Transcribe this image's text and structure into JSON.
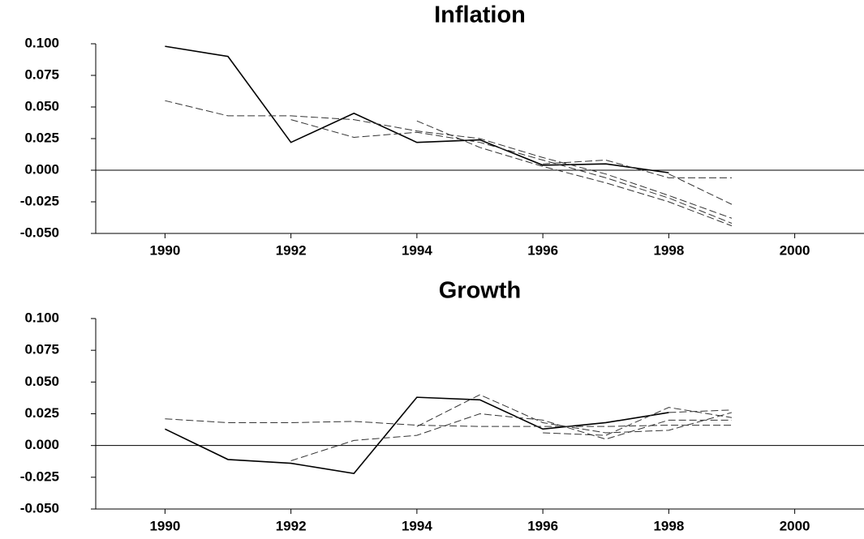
{
  "chart_data": [
    {
      "type": "line",
      "title": "Inflation",
      "x": [
        1990,
        1991,
        1992,
        1993,
        1994,
        1995,
        1996,
        1997,
        1998,
        1999
      ],
      "xlim": [
        1988.9,
        2001.1
      ],
      "xticks": [
        1990,
        1992,
        1994,
        1996,
        1998,
        2000
      ],
      "ylim": [
        -0.05,
        0.1
      ],
      "yticks": [
        {
          "value": -0.05,
          "label": "-0.050"
        },
        {
          "value": -0.025,
          "label": "-0.025"
        },
        {
          "value": 0,
          "label": "0.000"
        },
        {
          "value": 0.025,
          "label": "0.025"
        },
        {
          "value": 0.05,
          "label": "0.050"
        },
        {
          "value": 0.075,
          "label": "0.075"
        },
        {
          "value": 0.1,
          "label": "0.100"
        }
      ],
      "zero_line": true,
      "series": [
        {
          "color": "#000000",
          "style": "solid",
          "values": [
            0.098,
            0.09,
            0.022,
            0.045,
            0.022,
            0.024,
            0.004,
            0.005,
            -0.002,
            null
          ]
        },
        {
          "color": "#333333",
          "style": "dashed",
          "values": [
            0.055,
            0.043,
            0.043,
            0.04,
            0.031,
            0.025,
            0.01,
            -0.003,
            -0.02,
            -0.038
          ]
        },
        {
          "color": "#333333",
          "style": "dashed",
          "values": [
            null,
            null,
            0.04,
            0.026,
            0.03,
            0.022,
            0.008,
            -0.006,
            -0.022,
            -0.042
          ]
        },
        {
          "color": "#333333",
          "style": "dashed",
          "values": [
            null,
            null,
            null,
            null,
            0.039,
            0.018,
            0.003,
            -0.01,
            -0.025,
            -0.044
          ]
        },
        {
          "color": "#333333",
          "style": "dashed",
          "values": [
            null,
            null,
            null,
            null,
            null,
            null,
            0.005,
            0.008,
            -0.006,
            -0.006
          ]
        },
        {
          "color": "#333333",
          "style": "dashed",
          "values": [
            null,
            null,
            null,
            null,
            null,
            null,
            null,
            null,
            -0.003,
            -0.027
          ]
        }
      ]
    },
    {
      "type": "line",
      "title": "Growth",
      "x": [
        1990,
        1991,
        1992,
        1993,
        1994,
        1995,
        1996,
        1997,
        1998,
        1999
      ],
      "xlim": [
        1988.9,
        2001.1
      ],
      "xticks": [
        1990,
        1992,
        1994,
        1996,
        1998,
        2000
      ],
      "ylim": [
        -0.05,
        0.1
      ],
      "yticks": [
        {
          "value": -0.05,
          "label": "-0.050"
        },
        {
          "value": -0.025,
          "label": "-0.025"
        },
        {
          "value": 0,
          "label": "0.000"
        },
        {
          "value": 0.025,
          "label": "0.025"
        },
        {
          "value": 0.05,
          "label": "0.050"
        },
        {
          "value": 0.075,
          "label": "0.075"
        },
        {
          "value": 0.1,
          "label": "0.100"
        }
      ],
      "zero_line": true,
      "series": [
        {
          "color": "#000000",
          "style": "solid",
          "values": [
            0.013,
            -0.011,
            -0.014,
            -0.022,
            0.038,
            0.036,
            0.013,
            0.018,
            0.026,
            null
          ]
        },
        {
          "color": "#333333",
          "style": "dashed",
          "values": [
            0.021,
            0.018,
            0.018,
            0.019,
            0.016,
            0.015,
            0.015,
            0.015,
            0.016,
            0.016
          ]
        },
        {
          "color": "#333333",
          "style": "dashed",
          "values": [
            null,
            null,
            -0.012,
            0.004,
            0.008,
            0.025,
            0.02,
            0.005,
            0.02,
            0.02
          ]
        },
        {
          "color": "#333333",
          "style": "dashed",
          "values": [
            null,
            null,
            null,
            null,
            0.015,
            0.04,
            0.018,
            0.01,
            0.012,
            0.026
          ]
        },
        {
          "color": "#333333",
          "style": "dashed",
          "values": [
            null,
            null,
            null,
            null,
            null,
            null,
            0.01,
            0.008,
            0.03,
            0.022
          ]
        },
        {
          "color": "#333333",
          "style": "dashed",
          "values": [
            null,
            null,
            null,
            null,
            null,
            null,
            null,
            null,
            0.026,
            0.028
          ]
        }
      ]
    }
  ]
}
